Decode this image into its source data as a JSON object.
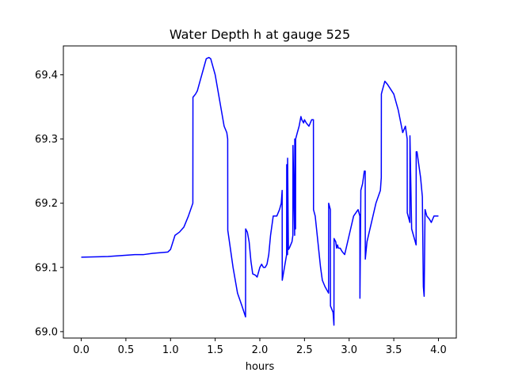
{
  "chart_data": {
    "type": "line",
    "title": "Water Depth h at gauge 525",
    "xlabel": "hours",
    "ylabel": "",
    "xlim": [
      -0.2,
      4.2
    ],
    "ylim": [
      68.99,
      69.445
    ],
    "xticks": [
      0.0,
      0.5,
      1.0,
      1.5,
      2.0,
      2.5,
      3.0,
      3.5,
      4.0
    ],
    "xtick_labels": [
      "0.0",
      "0.5",
      "1.0",
      "1.5",
      "2.0",
      "2.5",
      "3.0",
      "3.5",
      "4.0"
    ],
    "yticks": [
      69.0,
      69.1,
      69.2,
      69.3,
      69.4
    ],
    "ytick_labels": [
      "69.0",
      "69.1",
      "69.2",
      "69.3",
      "69.4"
    ],
    "grid": false,
    "line_color": "#0000ff",
    "series": [
      {
        "x": [
          0.0,
          0.3,
          0.6,
          0.7,
          0.8,
          0.97,
          1.0,
          1.05,
          1.1,
          1.15,
          1.2,
          1.25,
          1.251,
          1.28,
          1.3,
          1.33,
          1.37,
          1.4,
          1.43,
          1.45,
          1.47,
          1.5,
          1.55,
          1.6,
          1.63,
          1.64,
          1.641,
          1.7,
          1.75,
          1.8,
          1.84,
          1.841,
          1.86,
          1.88,
          1.9,
          1.92,
          1.95,
          1.97,
          2.0,
          2.02,
          2.04,
          2.06,
          2.08,
          2.1,
          2.12,
          2.15,
          2.19,
          2.22,
          2.24,
          2.25,
          2.251,
          2.3,
          2.301,
          2.31,
          2.311,
          2.32,
          2.321,
          2.33,
          2.36,
          2.37,
          2.371,
          2.39,
          2.391,
          2.4,
          2.401,
          2.42,
          2.44,
          2.46,
          2.47,
          2.49,
          2.5,
          2.52,
          2.55,
          2.58,
          2.6,
          2.601,
          2.62,
          2.65,
          2.68,
          2.7,
          2.73,
          2.75,
          2.77,
          2.771,
          2.79,
          2.791,
          2.82,
          2.83,
          2.831,
          2.85,
          2.86,
          2.87,
          2.88,
          2.9,
          2.92,
          2.95,
          3.0,
          3.05,
          3.1,
          3.12,
          3.121,
          3.13,
          3.131,
          3.15,
          3.17,
          3.18,
          3.181,
          3.2,
          3.25,
          3.3,
          3.35,
          3.36,
          3.361,
          3.37,
          3.4,
          3.43,
          3.5,
          3.55,
          3.6,
          3.63,
          3.65,
          3.651,
          3.68,
          3.681,
          3.7,
          3.72,
          3.74,
          3.75,
          3.751,
          3.76,
          3.78,
          3.8,
          3.82,
          3.83,
          3.831,
          3.84,
          3.85,
          3.851,
          3.87,
          3.9,
          3.92,
          3.95,
          4.0
        ],
        "y": [
          69.116,
          69.117,
          69.12,
          69.12,
          69.122,
          69.124,
          69.128,
          69.15,
          69.155,
          69.163,
          69.18,
          69.2,
          69.365,
          69.37,
          69.375,
          69.39,
          69.41,
          69.425,
          69.427,
          69.425,
          69.415,
          69.4,
          69.36,
          69.32,
          69.31,
          69.3,
          69.158,
          69.1,
          69.06,
          69.04,
          69.023,
          69.16,
          69.155,
          69.14,
          69.11,
          69.09,
          69.088,
          69.085,
          69.1,
          69.105,
          69.1,
          69.1,
          69.105,
          69.12,
          69.15,
          69.18,
          69.18,
          69.19,
          69.2,
          69.22,
          69.08,
          69.12,
          69.26,
          69.12,
          69.27,
          69.13,
          69.128,
          69.13,
          69.14,
          69.15,
          69.29,
          69.15,
          69.3,
          69.16,
          69.3,
          69.31,
          69.32,
          69.335,
          69.33,
          69.325,
          69.33,
          69.325,
          69.32,
          69.33,
          69.33,
          69.19,
          69.18,
          69.14,
          69.1,
          69.08,
          69.07,
          69.065,
          69.06,
          69.2,
          69.19,
          69.04,
          69.03,
          69.01,
          69.145,
          69.14,
          69.13,
          69.135,
          69.13,
          69.13,
          69.125,
          69.12,
          69.15,
          69.18,
          69.19,
          69.18,
          69.052,
          69.2,
          69.22,
          69.23,
          69.25,
          69.25,
          69.113,
          69.14,
          69.17,
          69.2,
          69.22,
          69.24,
          69.37,
          69.375,
          69.39,
          69.385,
          69.37,
          69.345,
          69.31,
          69.32,
          69.3,
          69.185,
          69.17,
          69.305,
          69.16,
          69.15,
          69.14,
          69.135,
          69.28,
          69.28,
          69.26,
          69.24,
          69.21,
          69.08,
          69.07,
          69.055,
          69.19,
          69.19,
          69.18,
          69.175,
          69.17,
          69.18,
          69.18
        ]
      }
    ]
  }
}
